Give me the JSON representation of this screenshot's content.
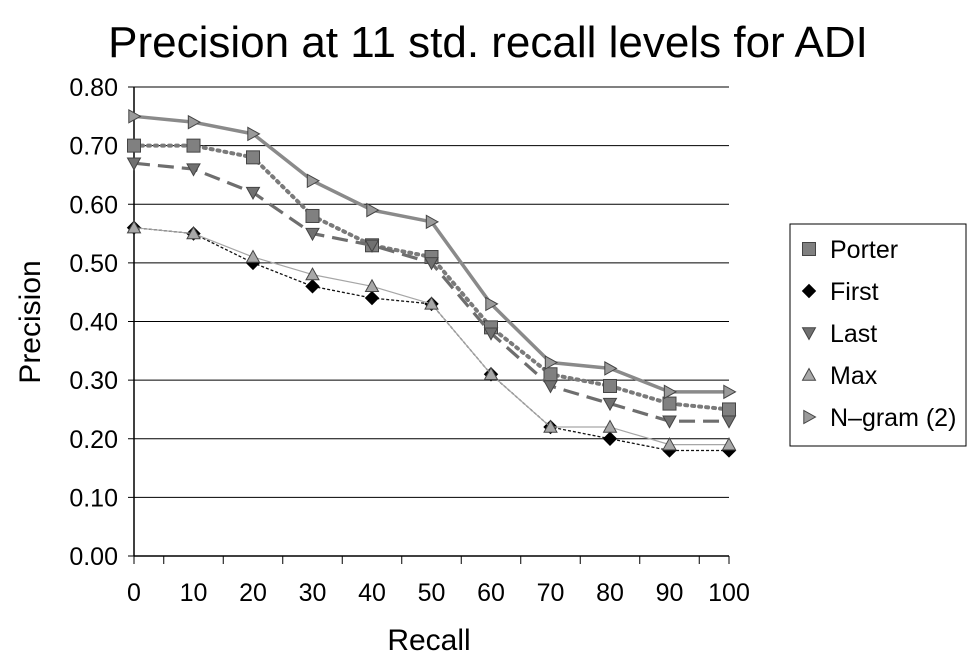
{
  "chart_data": {
    "type": "line",
    "title": "Precision at 11 std. recall levels for ADI",
    "xlabel": "Recall",
    "ylabel": "Precision",
    "categories": [
      "0",
      "10",
      "20",
      "30",
      "40",
      "50",
      "60",
      "70",
      "80",
      "90",
      "100"
    ],
    "ylim": [
      0,
      0.8
    ],
    "yticks": [
      "0.00",
      "0.10",
      "0.20",
      "0.30",
      "0.40",
      "0.50",
      "0.60",
      "0.70",
      "0.80"
    ],
    "grid": "horizontal",
    "legend_position": "right",
    "series": [
      {
        "name": "Porter",
        "marker": "square",
        "color": "#7a7a7a",
        "line": "dotted",
        "values": [
          0.7,
          0.7,
          0.68,
          0.58,
          0.53,
          0.51,
          0.39,
          0.31,
          0.29,
          0.26,
          0.25
        ]
      },
      {
        "name": "First",
        "marker": "diamond",
        "color": "#111111",
        "line": "thin-dashed",
        "values": [
          0.56,
          0.55,
          0.5,
          0.46,
          0.44,
          0.43,
          0.31,
          0.22,
          0.2,
          0.18,
          0.18
        ]
      },
      {
        "name": "Last",
        "marker": "triangle-down",
        "color": "#6e6e6e",
        "line": "dashed",
        "values": [
          0.67,
          0.66,
          0.62,
          0.55,
          0.53,
          0.5,
          0.38,
          0.29,
          0.26,
          0.23,
          0.23
        ]
      },
      {
        "name": "Max",
        "marker": "triangle-up",
        "color": "#a6a6a6",
        "line": "thin-solid",
        "values": [
          0.56,
          0.55,
          0.51,
          0.48,
          0.46,
          0.43,
          0.31,
          0.22,
          0.22,
          0.19,
          0.19
        ]
      },
      {
        "name": "N–gram (2)",
        "marker": "triangle-right",
        "color": "#8a8a8a",
        "line": "solid",
        "values": [
          0.75,
          0.74,
          0.72,
          0.64,
          0.59,
          0.57,
          0.43,
          0.33,
          0.32,
          0.28,
          0.28
        ]
      }
    ]
  }
}
